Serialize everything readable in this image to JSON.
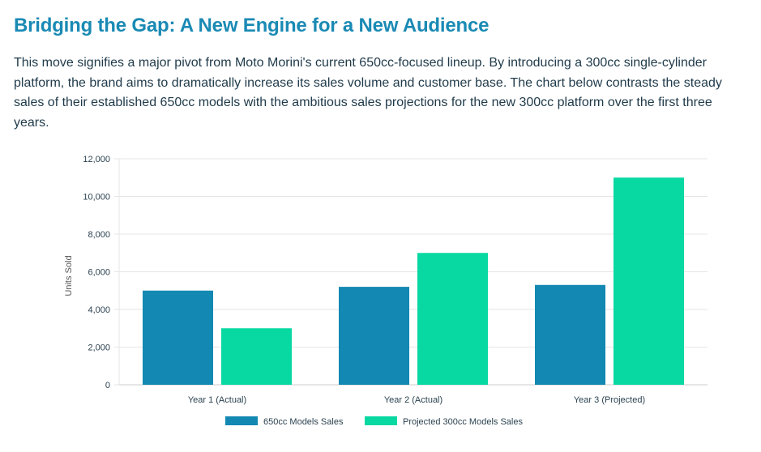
{
  "section": {
    "title": "Bridging the Gap: A New Engine for a New Audience",
    "paragraph": "This move signifies a major pivot from Moto Morini's current 650cc-focused lineup. By introducing a 300cc single-cylinder platform, the brand aims to dramatically increase its sales volume and customer base. The chart below contrasts the steady sales of their established 650cc models with the ambitious sales projections for the new 300cc platform over the first three years."
  },
  "chart_data": {
    "type": "bar",
    "title": "",
    "xlabel": "",
    "ylabel": "Units Sold",
    "categories": [
      "Year 1 (Actual)",
      "Year 2 (Actual)",
      "Year 3 (Projected)"
    ],
    "series": [
      {
        "name": "650cc Models Sales",
        "color": "#1288b2",
        "values": [
          5000,
          5200,
          5300
        ]
      },
      {
        "name": "Projected 300cc Models Sales",
        "color": "#08d8a2",
        "values": [
          3000,
          7000,
          11000
        ]
      }
    ],
    "ylim": [
      0,
      12000
    ],
    "yticks": [
      0,
      2000,
      4000,
      6000,
      8000,
      10000,
      12000
    ],
    "ytick_labels": [
      "0",
      "2,000",
      "4,000",
      "6,000",
      "8,000",
      "10,000",
      "12,000"
    ],
    "grid": true,
    "legend_position": "bottom"
  }
}
